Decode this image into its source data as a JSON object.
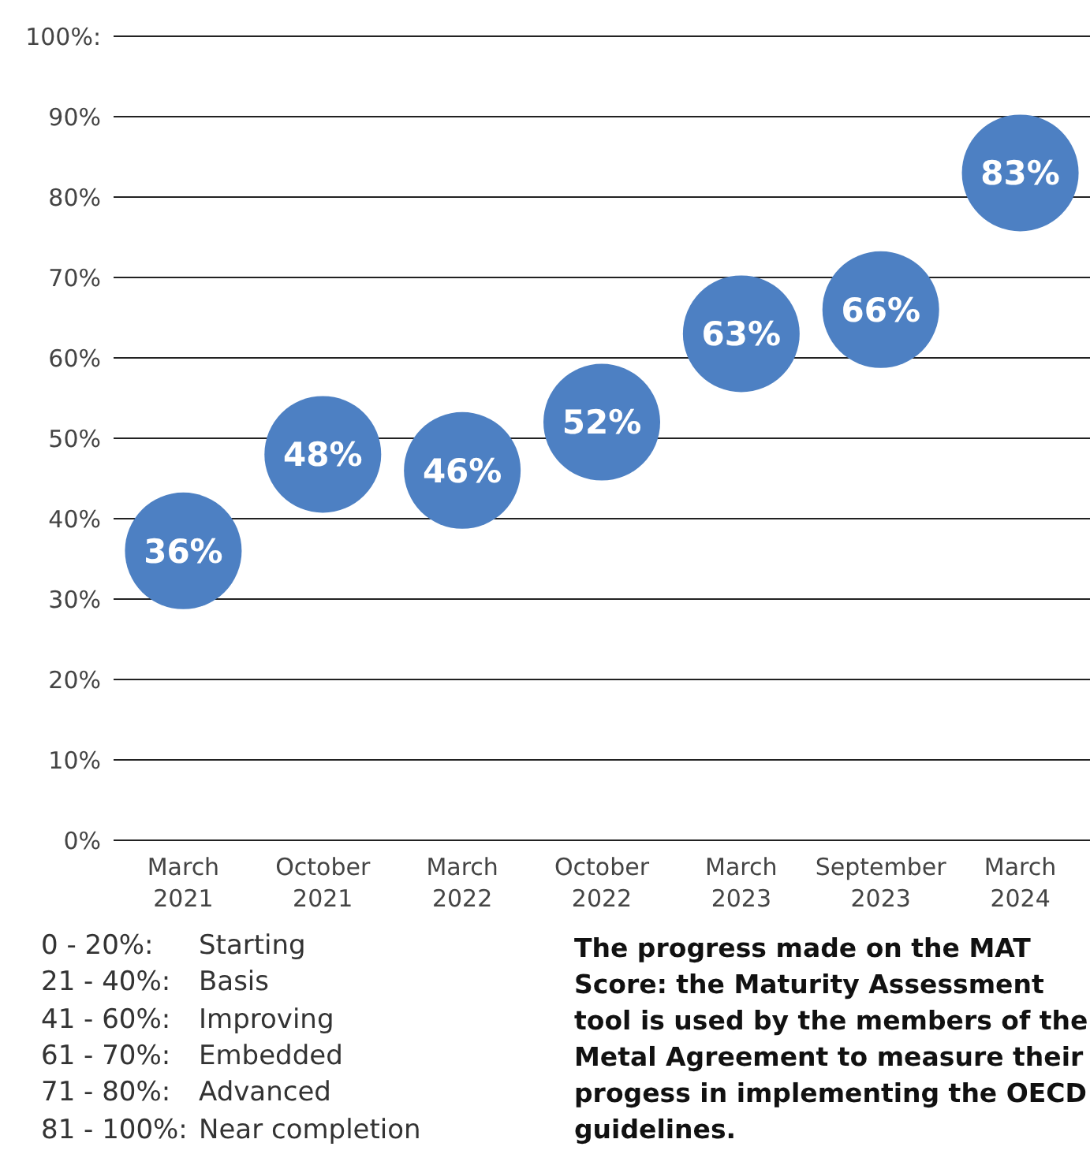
{
  "chart_data": {
    "type": "scatter",
    "categories": [
      "March\n2021",
      "October\n2021",
      "March\n2022",
      "October\n2022",
      "March\n2023",
      "September\n2023",
      "March\n2024"
    ],
    "series": [
      {
        "color": "#4d80c3",
        "values": [
          36,
          48,
          46,
          52,
          63,
          66,
          83
        ],
        "value_labels": [
          "36%",
          "48%",
          "46%",
          "52%",
          "63%",
          "66%",
          "83%"
        ]
      }
    ],
    "ylim": [
      0,
      100
    ],
    "yticks": [
      {
        "value": 0,
        "label": "0%"
      },
      {
        "value": 10,
        "label": "10%"
      },
      {
        "value": 20,
        "label": "20%"
      },
      {
        "value": 30,
        "label": "30%"
      },
      {
        "value": 40,
        "label": "40%"
      },
      {
        "value": 50,
        "label": "50%"
      },
      {
        "value": 60,
        "label": "60%"
      },
      {
        "value": 70,
        "label": "70%"
      },
      {
        "value": 80,
        "label": "80%"
      },
      {
        "value": 90,
        "label": "90%"
      },
      {
        "value": 100,
        "label": "100%:"
      }
    ],
    "grid": "y",
    "marker": "circle",
    "annotations": [
      "0 - 20%:",
      "Starting",
      "21 - 40%:",
      "Basis",
      "41 - 60%:",
      "Improving",
      "61 - 70%:",
      "Embedded",
      "71 - 80%:",
      "Advanced",
      "81 - 100%:",
      "Near completion",
      "The progress made on the MAT Score: the Maturity Assessment tool is used by the members of the Metal Agreement to measure their progess in implementing the OECD guidelines."
    ]
  }
}
